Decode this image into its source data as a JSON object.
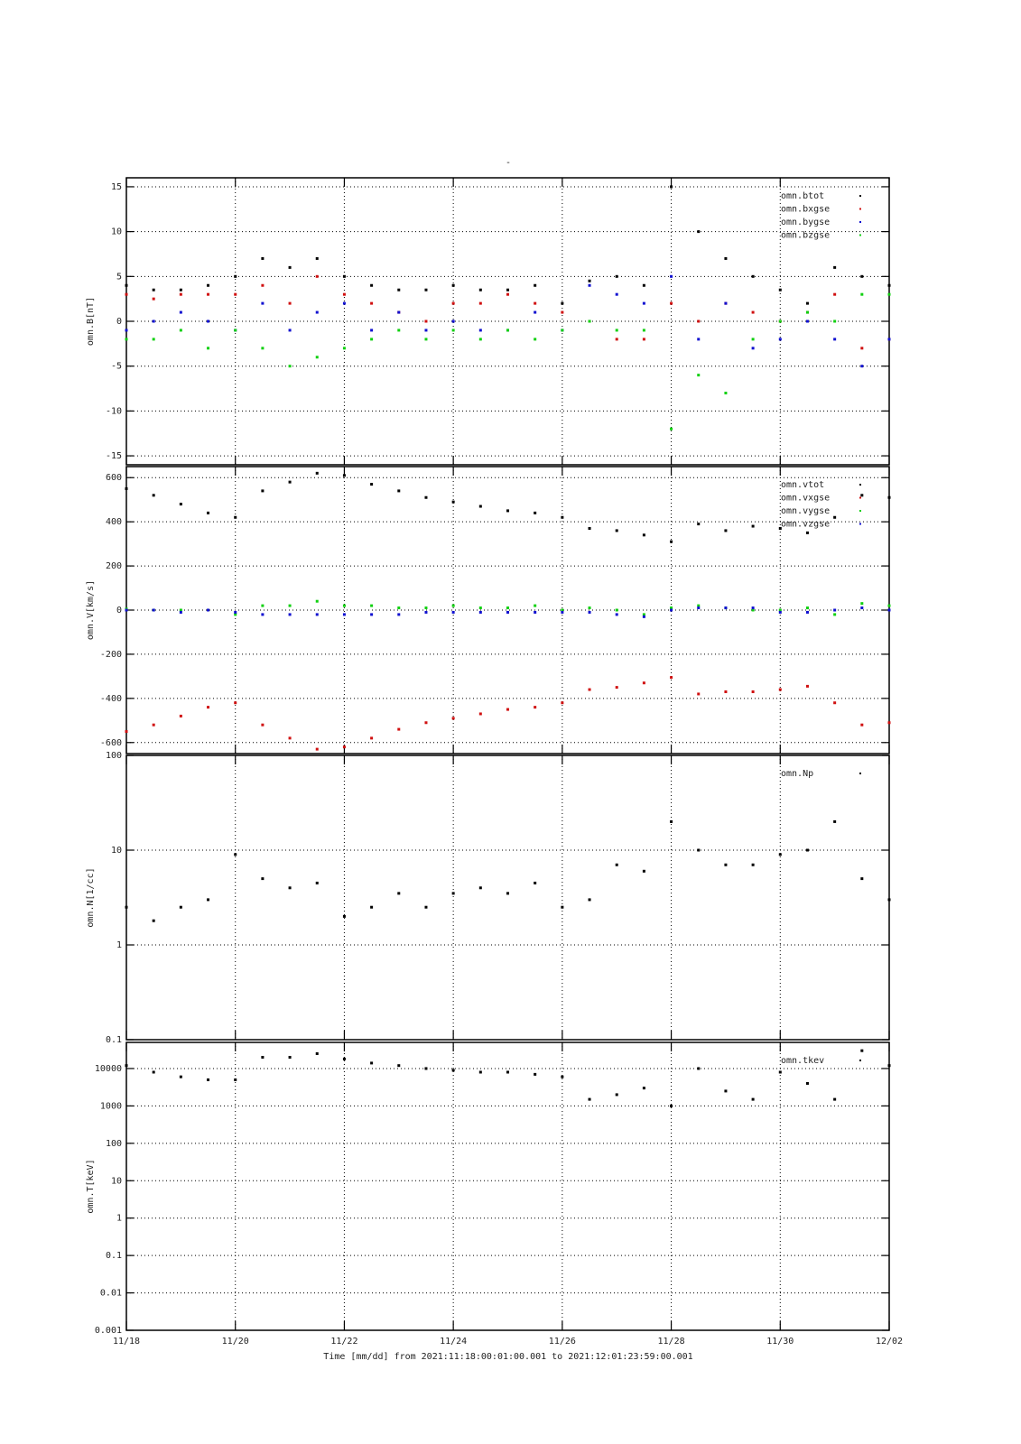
{
  "chart_data": [
    {
      "type": "scatter",
      "title": "-",
      "ylabel": "omn.B[nT]",
      "legend": "upper right",
      "grid": true,
      "xlim": [
        0,
        14
      ],
      "ylim": [
        -16,
        16
      ],
      "yticks": [
        -15,
        -10,
        -5,
        0,
        5,
        10,
        15
      ],
      "x": [
        0,
        0.5,
        1,
        1.5,
        2,
        2.5,
        3,
        3.5,
        4,
        4.5,
        5,
        5.5,
        6,
        6.5,
        7,
        7.5,
        8,
        8.5,
        9,
        9.5,
        10,
        10.5,
        11,
        11.5,
        12,
        12.5,
        13,
        13.5,
        14
      ],
      "series": [
        {
          "name": "omn.btot",
          "color": "#000000",
          "values": [
            4,
            3.5,
            3.5,
            4,
            5,
            7,
            6,
            7,
            5,
            4,
            3.5,
            3.5,
            4,
            3.5,
            3.5,
            4,
            2,
            4.5,
            5,
            4,
            15,
            10,
            7,
            5,
            3.5,
            2,
            6,
            5,
            4
          ]
        },
        {
          "name": "omn.bxgse",
          "color": "#d01010",
          "values": [
            3,
            2.5,
            3,
            3,
            3,
            4,
            2,
            5,
            3,
            2,
            1,
            0,
            2,
            2,
            3,
            2,
            1,
            0,
            -2,
            -2,
            2,
            0,
            2,
            1,
            0,
            1,
            3,
            -3,
            -2
          ]
        },
        {
          "name": "omn.bygse",
          "color": "#1010d0",
          "values": [
            -1,
            0,
            1,
            0,
            -1,
            2,
            -1,
            1,
            2,
            -1,
            1,
            -1,
            0,
            -1,
            -1,
            1,
            -1,
            4,
            3,
            2,
            5,
            -2,
            2,
            -3,
            -2,
            0,
            -2,
            -5,
            -2
          ]
        },
        {
          "name": "omn.bzgse",
          "color": "#10d010",
          "values": [
            -2,
            -2,
            -1,
            -3,
            -1,
            -3,
            -5,
            -4,
            -3,
            -2,
            -1,
            -2,
            -1,
            -2,
            -1,
            -2,
            -1,
            0,
            -1,
            -1,
            -12,
            -6,
            -8,
            -2,
            0,
            1,
            0,
            3,
            3
          ]
        }
      ]
    },
    {
      "type": "scatter",
      "ylabel": "omn.V[km/s]",
      "legend": "upper right",
      "grid": true,
      "xlim": [
        0,
        14
      ],
      "ylim": [
        -650,
        650
      ],
      "yticks": [
        -600,
        -400,
        -200,
        0,
        200,
        400,
        600
      ],
      "x": [
        0,
        0.5,
        1,
        1.5,
        2,
        2.5,
        3,
        3.5,
        4,
        4.5,
        5,
        5.5,
        6,
        6.5,
        7,
        7.5,
        8,
        8.5,
        9,
        9.5,
        10,
        10.5,
        11,
        11.5,
        12,
        12.5,
        13,
        13.5,
        14
      ],
      "series": [
        {
          "name": "omn.vtot",
          "color": "#000000",
          "values": [
            550,
            520,
            480,
            440,
            420,
            540,
            580,
            620,
            610,
            570,
            540,
            510,
            490,
            470,
            450,
            440,
            420,
            370,
            360,
            340,
            310,
            390,
            360,
            380,
            370,
            350,
            420,
            520,
            510
          ]
        },
        {
          "name": "omn.vxgse",
          "color": "#d01010",
          "values": [
            -550,
            -520,
            -480,
            -440,
            -420,
            -520,
            -580,
            -630,
            -620,
            -580,
            -540,
            -510,
            -490,
            -470,
            -450,
            -440,
            -420,
            -360,
            -350,
            -330,
            -305,
            -380,
            -370,
            -370,
            -360,
            -345,
            -420,
            -520,
            -510
          ]
        },
        {
          "name": "omn.vygse",
          "color": "#10d010",
          "values": [
            5,
            0,
            0,
            0,
            -20,
            20,
            20,
            40,
            20,
            20,
            10,
            10,
            20,
            10,
            10,
            20,
            0,
            10,
            0,
            -20,
            10,
            20,
            10,
            0,
            0,
            10,
            -20,
            30,
            20
          ]
        },
        {
          "name": "omn.vzgse",
          "color": "#1010d0",
          "values": [
            0,
            0,
            -10,
            0,
            -10,
            -20,
            -20,
            -20,
            -20,
            -20,
            -20,
            -10,
            -10,
            -10,
            -10,
            -10,
            -10,
            -10,
            -20,
            -30,
            0,
            10,
            10,
            10,
            -10,
            -10,
            0,
            10,
            0
          ]
        }
      ]
    },
    {
      "type": "scatter",
      "ylabel": "omn.N[1/cc]",
      "legend": "upper right",
      "grid": true,
      "log": true,
      "xlim": [
        0,
        14
      ],
      "ylim": [
        0.1,
        100
      ],
      "yticks": [
        0.1,
        1,
        10,
        100
      ],
      "x": [
        0,
        0.5,
        1,
        1.5,
        2,
        2.5,
        3,
        3.5,
        4,
        4.5,
        5,
        5.5,
        6,
        6.5,
        7,
        7.5,
        8,
        8.5,
        9,
        9.5,
        10,
        10.5,
        11,
        11.5,
        12,
        12.5,
        13,
        13.5,
        14
      ],
      "series": [
        {
          "name": "omn.Np",
          "color": "#000000",
          "values": [
            2.5,
            1.8,
            2.5,
            3,
            9,
            5,
            4,
            4.5,
            2,
            2.5,
            3.5,
            2.5,
            3.5,
            4,
            3.5,
            4.5,
            2.5,
            3,
            7,
            6,
            20,
            10,
            7,
            7,
            9,
            10,
            20,
            5,
            3
          ]
        }
      ]
    },
    {
      "type": "scatter",
      "ylabel": "omn.T[keV]",
      "legend": "upper right",
      "grid": true,
      "log": true,
      "xlabel": "Time [mm/dd]  from 2021:11:18:00:01:00.001  to  2021:12:01:23:59:00.001",
      "xlim": [
        0,
        14
      ],
      "ylim": [
        0.001,
        50000
      ],
      "yticks": [
        0.001,
        0.01,
        0.1,
        1,
        10,
        100,
        1000,
        10000
      ],
      "xticks": [
        {
          "value": 0,
          "label": "11/18"
        },
        {
          "value": 2,
          "label": "11/20"
        },
        {
          "value": 4,
          "label": "11/22"
        },
        {
          "value": 6,
          "label": "11/24"
        },
        {
          "value": 8,
          "label": "11/26"
        },
        {
          "value": 10,
          "label": "11/28"
        },
        {
          "value": 12,
          "label": "11/30"
        },
        {
          "value": 14,
          "label": "12/02"
        }
      ],
      "x": [
        0,
        0.5,
        1,
        1.5,
        2,
        2.5,
        3,
        3.5,
        4,
        4.5,
        5,
        5.5,
        6,
        6.5,
        7,
        7.5,
        8,
        8.5,
        9,
        9.5,
        10,
        10.5,
        11,
        11.5,
        12,
        12.5,
        13,
        13.5,
        14
      ],
      "series": [
        {
          "name": "omn.tkev",
          "color": "#000000",
          "values": [
            12000,
            8000,
            6000,
            5000,
            5000,
            20000,
            20000,
            25000,
            18000,
            14000,
            12000,
            10000,
            9000,
            8000,
            8000,
            7000,
            6000,
            1500,
            2000,
            3000,
            1000,
            10000,
            2500,
            1500,
            8000,
            4000,
            1500,
            30000,
            12000
          ]
        }
      ]
    }
  ]
}
